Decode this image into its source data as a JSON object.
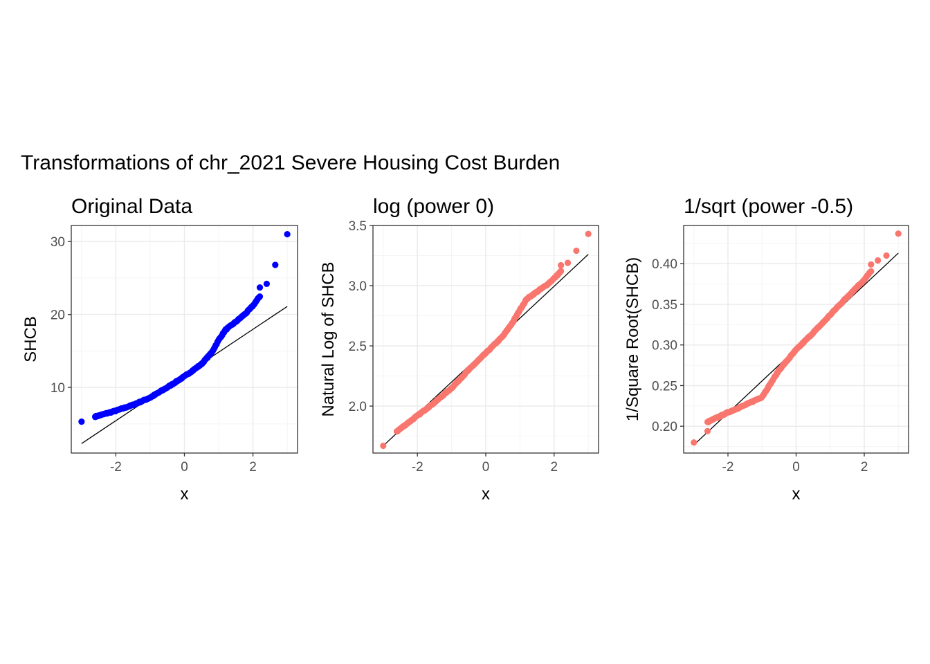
{
  "figure_title": "Transformations of chr_2021 Severe Housing Cost Burden",
  "colors": {
    "blue": "#0000ff",
    "salmon": "#f8766d",
    "grid_major": "#ebebeb",
    "grid_minor": "#f4f4f4",
    "panel_border": "#333333",
    "line": "#000000"
  },
  "chart_data": [
    {
      "type": "scatter",
      "subtype": "qq-plot",
      "title": "Original Data",
      "xlabel": "x",
      "ylabel": "SHCB",
      "xlim": [
        -3.3,
        3.3
      ],
      "ylim": [
        1.0,
        32.2
      ],
      "xticks": [
        -2,
        0,
        2
      ],
      "yticks": [
        10,
        20,
        30
      ],
      "grid": true,
      "point_color": "#0000ff",
      "reference_line": {
        "x": [
          -3.0,
          3.0
        ],
        "y": [
          2.3,
          21.1
        ]
      },
      "outliers": {
        "x": [
          -3.0,
          -2.6,
          2.2,
          2.4,
          2.65,
          3.0
        ],
        "y": [
          5.3,
          6.0,
          23.7,
          24.2,
          26.8,
          31.0
        ]
      },
      "curve": {
        "x": [
          -2.6,
          -2.0,
          -1.5,
          -1.0,
          -0.5,
          0.0,
          0.5,
          0.8,
          1.0,
          1.2,
          1.5,
          1.8,
          2.0,
          2.2
        ],
        "y": [
          6.0,
          6.8,
          7.6,
          8.6,
          10.0,
          11.5,
          13.2,
          14.8,
          16.5,
          17.9,
          19.0,
          20.2,
          21.2,
          22.5
        ]
      }
    },
    {
      "type": "scatter",
      "subtype": "qq-plot",
      "title": "log (power 0)",
      "xlabel": "x",
      "ylabel": "Natural Log of SHCB",
      "xlim": [
        -3.3,
        3.3
      ],
      "ylim": [
        1.61,
        3.5
      ],
      "xticks": [
        -2,
        0,
        2
      ],
      "yticks": [
        2.0,
        2.5,
        3.0,
        3.5
      ],
      "ytick_labels": [
        "2.0",
        "2.5",
        "3.0",
        "3.5"
      ],
      "grid": true,
      "point_color": "#f8766d",
      "reference_line": {
        "x": [
          -3.0,
          3.0
        ],
        "y": [
          1.67,
          3.26
        ]
      },
      "outliers": {
        "x": [
          -3.0,
          -2.6,
          2.2,
          2.4,
          2.65,
          3.0
        ],
        "y": [
          1.67,
          1.79,
          3.17,
          3.19,
          3.29,
          3.43
        ]
      },
      "curve": {
        "x": [
          -2.6,
          -2.0,
          -1.5,
          -1.0,
          -0.5,
          0.0,
          0.5,
          0.8,
          1.0,
          1.2,
          1.5,
          1.8,
          2.0,
          2.2
        ],
        "y": [
          1.79,
          1.92,
          2.03,
          2.15,
          2.3,
          2.44,
          2.58,
          2.7,
          2.8,
          2.89,
          2.95,
          3.01,
          3.06,
          3.12
        ]
      }
    },
    {
      "type": "scatter",
      "subtype": "qq-plot",
      "title": "1/sqrt (power -0.5)",
      "xlabel": "x",
      "ylabel": "1/Square Root(SHCB)",
      "xlim": [
        -3.3,
        3.3
      ],
      "ylim": [
        0.167,
        0.447
      ],
      "xticks": [
        -2,
        0,
        2
      ],
      "yticks": [
        0.2,
        0.25,
        0.3,
        0.35,
        0.4
      ],
      "ytick_labels": [
        "0.20",
        "0.25",
        "0.30",
        "0.35",
        "0.40"
      ],
      "grid": true,
      "point_color": "#f8766d",
      "reference_line": {
        "x": [
          -3.0,
          3.0
        ],
        "y": [
          0.177,
          0.413
        ]
      },
      "outliers": {
        "x": [
          -3.0,
          -2.6,
          2.2,
          2.4,
          2.65,
          3.0
        ],
        "y": [
          0.18,
          0.194,
          0.399,
          0.404,
          0.41,
          0.437
        ]
      },
      "curve": {
        "x": [
          -2.6,
          -2.0,
          -1.5,
          -1.0,
          -0.5,
          0.0,
          0.5,
          0.8,
          1.0,
          1.2,
          1.5,
          1.8,
          2.0,
          2.2
        ],
        "y": [
          0.205,
          0.217,
          0.226,
          0.236,
          0.269,
          0.294,
          0.315,
          0.328,
          0.337,
          0.346,
          0.359,
          0.372,
          0.38,
          0.391
        ]
      }
    }
  ]
}
